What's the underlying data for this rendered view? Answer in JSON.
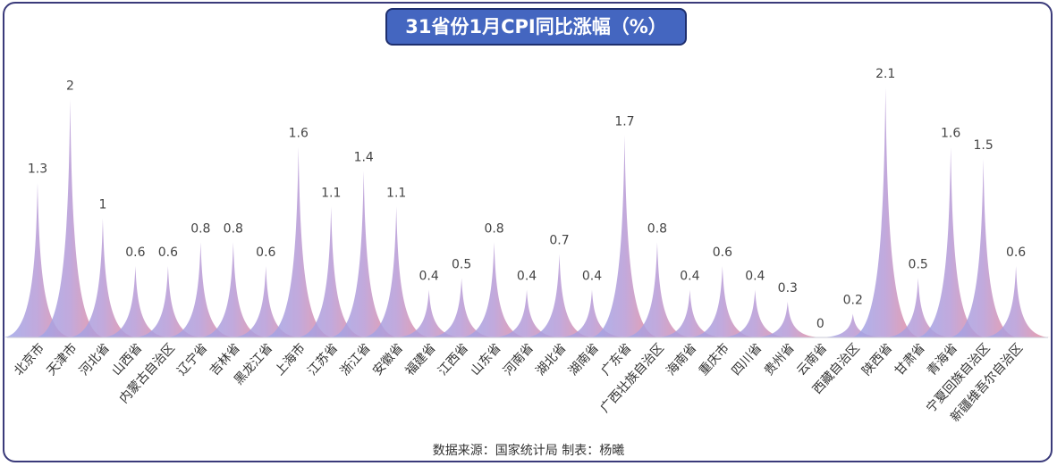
{
  "title": "31省份1月CPI同比涨幅（%）",
  "source": "数据来源：国家统计局 制表：杨曦",
  "colors": {
    "start": "#9aa8ec",
    "middle": "#b79ad6",
    "end": "#f38a90",
    "border": "#3a3a7a",
    "title_bg": "#4466c0"
  },
  "chart_data": {
    "type": "area",
    "title": "31省份1月CPI同比涨幅（%）",
    "categories": [
      "北京市",
      "天津市",
      "河北省",
      "山西省",
      "内蒙古自治区",
      "辽宁省",
      "吉林省",
      "黑龙江省",
      "上海市",
      "江苏省",
      "浙江省",
      "安徽省",
      "福建省",
      "江西省",
      "山东省",
      "河南省",
      "湖北省",
      "湖南省",
      "广东省",
      "广西壮族自治区",
      "海南省",
      "重庆市",
      "四川省",
      "贵州省",
      "云南省",
      "西藏自治区",
      "陕西省",
      "甘肃省",
      "青海省",
      "宁夏回族自治区",
      "新疆维吾尔自治区"
    ],
    "values": [
      1.3,
      2,
      1,
      0.6,
      0.6,
      0.8,
      0.8,
      0.6,
      1.6,
      1.1,
      1.4,
      1.1,
      0.4,
      0.5,
      0.8,
      0.4,
      0.7,
      0.4,
      1.7,
      0.8,
      0.4,
      0.6,
      0.4,
      0.3,
      0,
      0.2,
      2.1,
      0.5,
      1.6,
      1.5,
      0.6
    ],
    "value_labels": [
      "1.3",
      "2",
      "1",
      "0.6",
      "0.6",
      "0.8",
      "0.8",
      "0.6",
      "1.6",
      "1.1",
      "1.4",
      "1.1",
      "0.4",
      "0.5",
      "0.8",
      "0.4",
      "0.7",
      "0.4",
      "1.7",
      "0.8",
      "0.4",
      "0.6",
      "0.4",
      "0.3",
      "0",
      "0.2",
      "2.1",
      "0.5",
      "1.6",
      "1.5",
      "0.6"
    ],
    "ylim": [
      0,
      2.1
    ],
    "grid": false,
    "legend": "none"
  }
}
